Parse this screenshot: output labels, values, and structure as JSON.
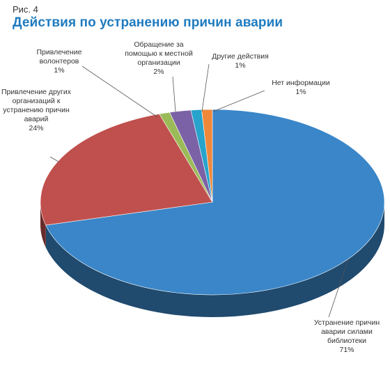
{
  "figure_label": "Рис. 4",
  "title": "Действия по устранению причин аварии",
  "colors": {
    "title": "#1f7bbf",
    "library": "#3a86c8",
    "other_orgs": "#c0504d",
    "volunteers": "#9bbb59",
    "local_org": "#7b62a6",
    "other_actions": "#27a3cc",
    "no_info": "#f0883a"
  },
  "chart_data": {
    "type": "pie",
    "title": "Действия по устранению причин аварии",
    "slices": [
      {
        "id": "library",
        "label": [
          "Устранение причин",
          "аварии силами",
          "библиотеки"
        ],
        "percent_label": "71%",
        "value": 71
      },
      {
        "id": "other_orgs",
        "label": [
          "Привлечение других",
          "организаций к",
          "устранению причин",
          "аварий"
        ],
        "percent_label": "24%",
        "value": 24
      },
      {
        "id": "volunteers",
        "label": [
          "Привлечение",
          "волонтеров"
        ],
        "percent_label": "1%",
        "value": 1
      },
      {
        "id": "local_org",
        "label": [
          "Обращение за",
          "помощью к местной",
          "организации"
        ],
        "percent_label": "2%",
        "value": 2
      },
      {
        "id": "other_actions",
        "label": [
          "Другие действия"
        ],
        "percent_label": "1%",
        "value": 1
      },
      {
        "id": "no_info",
        "label": [
          "Нет информации"
        ],
        "percent_label": "1%",
        "value": 1
      }
    ]
  }
}
